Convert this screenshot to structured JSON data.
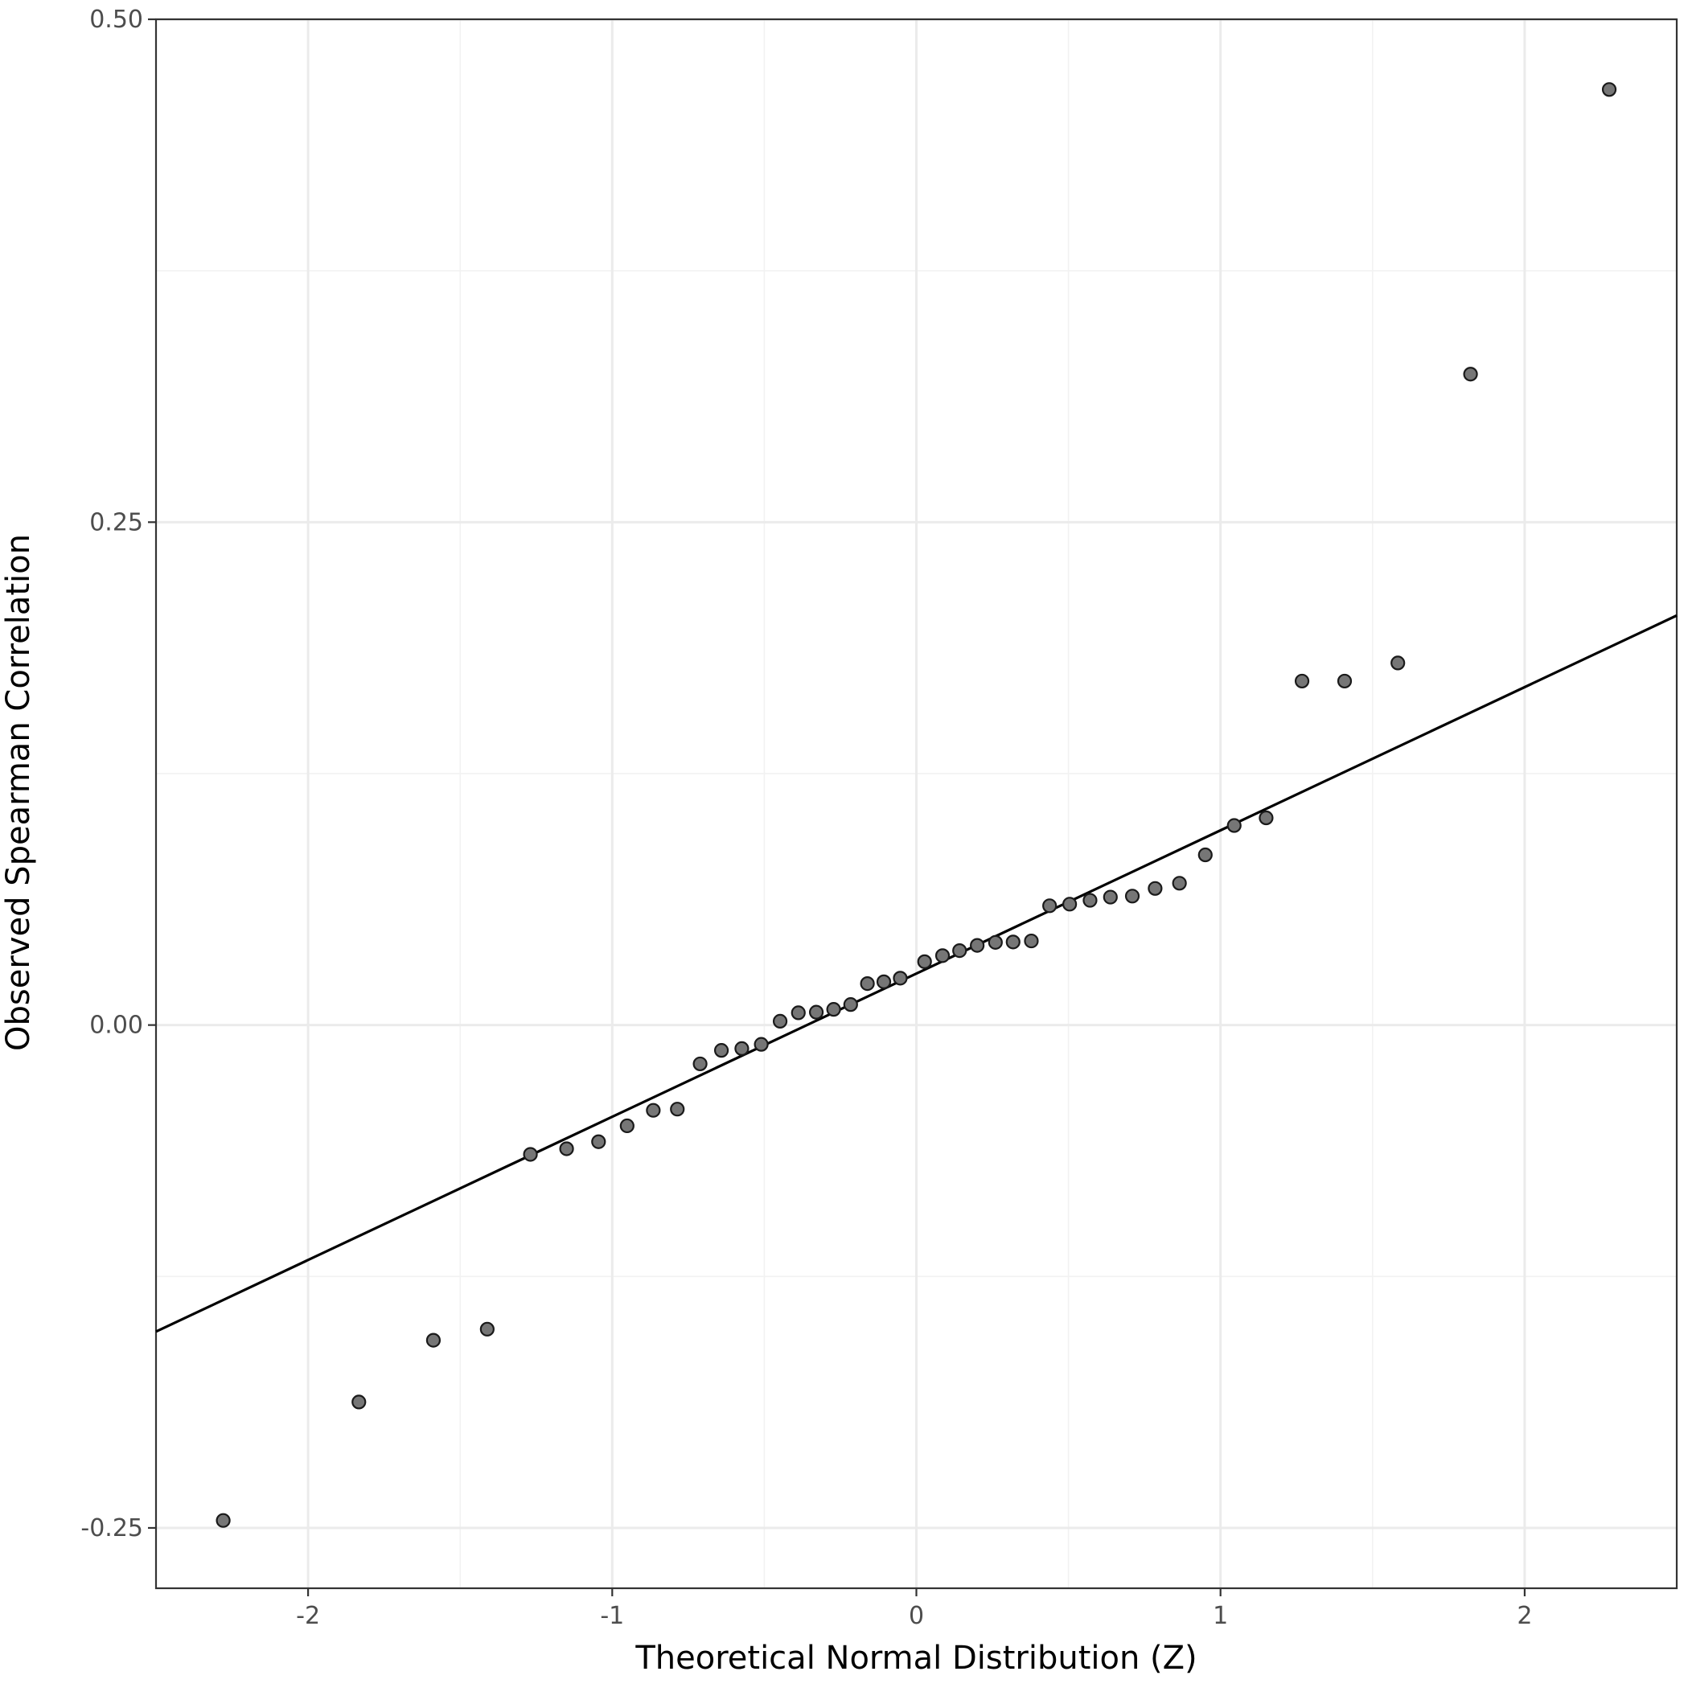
{
  "chart_data": {
    "type": "scatter",
    "title": "",
    "xlabel": "Theoretical Normal Distribution (Z)",
    "ylabel": "Observed Spearman Correlation",
    "xlim": [
      -2.5,
      2.5
    ],
    "ylim": [
      -0.28,
      0.5
    ],
    "x_ticks": [
      -2,
      -1,
      0,
      1,
      2
    ],
    "x_tick_labels": [
      "-2",
      "-1",
      "0",
      "1",
      "2"
    ],
    "y_ticks": [
      -0.25,
      0,
      0.25,
      0.5
    ],
    "y_tick_labels": [
      "-0.25",
      "0.00",
      "0.25",
      "0.50"
    ],
    "grid": true,
    "legend": "none",
    "reference_line": {
      "intercept": 0.0256,
      "slope": 0.0712
    },
    "points": [
      {
        "x": -2.279,
        "y": -0.2463
      },
      {
        "x": -1.833,
        "y": -0.1874
      },
      {
        "x": -1.588,
        "y": -0.1567
      },
      {
        "x": -1.411,
        "y": -0.1512
      },
      {
        "x": -1.269,
        "y": -0.0643
      },
      {
        "x": -1.15,
        "y": -0.0615
      },
      {
        "x": -1.045,
        "y": -0.058
      },
      {
        "x": -0.951,
        "y": -0.0501
      },
      {
        "x": -0.865,
        "y": -0.0424
      },
      {
        "x": -0.786,
        "y": -0.0418
      },
      {
        "x": -0.711,
        "y": -0.0193
      },
      {
        "x": -0.641,
        "y": -0.0126
      },
      {
        "x": -0.574,
        "y": -0.0117
      },
      {
        "x": -0.51,
        "y": -0.0096
      },
      {
        "x": -0.448,
        "y": 0.0019
      },
      {
        "x": -0.388,
        "y": 0.0061
      },
      {
        "x": -0.329,
        "y": 0.0064
      },
      {
        "x": -0.272,
        "y": 0.0078
      },
      {
        "x": -0.216,
        "y": 0.0102
      },
      {
        "x": -0.161,
        "y": 0.0206
      },
      {
        "x": -0.107,
        "y": 0.0215
      },
      {
        "x": -0.053,
        "y": 0.0233
      },
      {
        "x": 0.027,
        "y": 0.0315
      },
      {
        "x": 0.086,
        "y": 0.0345
      },
      {
        "x": 0.142,
        "y": 0.037
      },
      {
        "x": 0.2,
        "y": 0.0396
      },
      {
        "x": 0.26,
        "y": 0.0411
      },
      {
        "x": 0.318,
        "y": 0.0413
      },
      {
        "x": 0.378,
        "y": 0.0418
      },
      {
        "x": 0.438,
        "y": 0.0593
      },
      {
        "x": 0.504,
        "y": 0.0601
      },
      {
        "x": 0.571,
        "y": 0.062
      },
      {
        "x": 0.638,
        "y": 0.0636
      },
      {
        "x": 0.71,
        "y": 0.0641
      },
      {
        "x": 0.785,
        "y": 0.0679
      },
      {
        "x": 0.865,
        "y": 0.0705
      },
      {
        "x": 0.95,
        "y": 0.0846
      },
      {
        "x": 1.045,
        "y": 0.0992
      },
      {
        "x": 1.15,
        "y": 0.103
      },
      {
        "x": 1.268,
        "y": 0.171
      },
      {
        "x": 1.408,
        "y": 0.171
      },
      {
        "x": 1.583,
        "y": 0.18
      },
      {
        "x": 1.822,
        "y": 0.3236
      },
      {
        "x": 2.278,
        "y": 0.4651
      }
    ]
  }
}
